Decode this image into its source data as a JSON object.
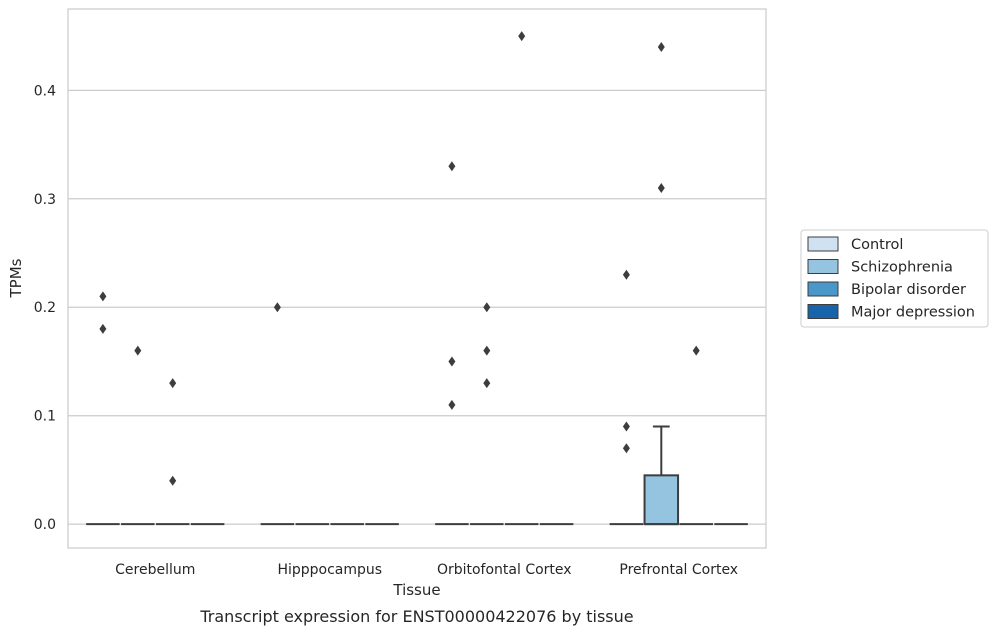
{
  "chart_data": {
    "type": "box",
    "title": "",
    "caption": "Transcript expression for ENST00000422076 by tissue",
    "xlabel": "Tissue",
    "ylabel": "TPMs",
    "ylim": [
      -0.022,
      0.475
    ],
    "yticks": [
      0.0,
      0.1,
      0.2,
      0.3,
      0.4
    ],
    "ytick_labels": [
      "0.0",
      "0.1",
      "0.2",
      "0.3",
      "0.4"
    ],
    "grid": "horizontal",
    "legend_position": "right",
    "categories": [
      "Cerebellum",
      "Hipppocampus",
      "Orbitofontal Cortex",
      "Prefrontal Cortex"
    ],
    "series": [
      {
        "name": "Control",
        "color": "#d0e1f2"
      },
      {
        "name": "Schizophrenia",
        "color": "#94c4df"
      },
      {
        "name": "Bipolar disorder",
        "color": "#4a98c9"
      },
      {
        "name": "Major depression",
        "color": "#1764ab"
      }
    ],
    "boxes": [
      {
        "category": 0,
        "series": 0,
        "q1": 0,
        "median": 0,
        "q3": 0,
        "whisker_low": 0,
        "whisker_high": 0,
        "outliers": [
          0.21,
          0.18
        ]
      },
      {
        "category": 0,
        "series": 1,
        "q1": 0,
        "median": 0,
        "q3": 0,
        "whisker_low": 0,
        "whisker_high": 0,
        "outliers": [
          0.16
        ]
      },
      {
        "category": 0,
        "series": 2,
        "q1": 0,
        "median": 0,
        "q3": 0,
        "whisker_low": 0,
        "whisker_high": 0,
        "outliers": [
          0.13,
          0.04
        ]
      },
      {
        "category": 0,
        "series": 3,
        "q1": 0,
        "median": 0,
        "q3": 0,
        "whisker_low": 0,
        "whisker_high": 0,
        "outliers": []
      },
      {
        "category": 1,
        "series": 0,
        "q1": 0,
        "median": 0,
        "q3": 0,
        "whisker_low": 0,
        "whisker_high": 0,
        "outliers": [
          0.2
        ]
      },
      {
        "category": 1,
        "series": 1,
        "q1": 0,
        "median": 0,
        "q3": 0,
        "whisker_low": 0,
        "whisker_high": 0,
        "outliers": []
      },
      {
        "category": 1,
        "series": 2,
        "q1": 0,
        "median": 0,
        "q3": 0,
        "whisker_low": 0,
        "whisker_high": 0,
        "outliers": []
      },
      {
        "category": 1,
        "series": 3,
        "q1": 0,
        "median": 0,
        "q3": 0,
        "whisker_low": 0,
        "whisker_high": 0,
        "outliers": []
      },
      {
        "category": 2,
        "series": 0,
        "q1": 0,
        "median": 0,
        "q3": 0,
        "whisker_low": 0,
        "whisker_high": 0,
        "outliers": [
          0.33,
          0.15,
          0.11
        ]
      },
      {
        "category": 2,
        "series": 1,
        "q1": 0,
        "median": 0,
        "q3": 0,
        "whisker_low": 0,
        "whisker_high": 0,
        "outliers": [
          0.2,
          0.16,
          0.13
        ]
      },
      {
        "category": 2,
        "series": 2,
        "q1": 0,
        "median": 0,
        "q3": 0,
        "whisker_low": 0,
        "whisker_high": 0,
        "outliers": [
          0.45
        ]
      },
      {
        "category": 2,
        "series": 3,
        "q1": 0,
        "median": 0,
        "q3": 0,
        "whisker_low": 0,
        "whisker_high": 0,
        "outliers": []
      },
      {
        "category": 3,
        "series": 0,
        "q1": 0,
        "median": 0,
        "q3": 0,
        "whisker_low": 0,
        "whisker_high": 0,
        "outliers": [
          0.23,
          0.09,
          0.07
        ]
      },
      {
        "category": 3,
        "series": 1,
        "q1": 0,
        "median": 0,
        "q3": 0.045,
        "whisker_low": 0,
        "whisker_high": 0.09,
        "outliers": [
          0.44,
          0.31
        ]
      },
      {
        "category": 3,
        "series": 2,
        "q1": 0,
        "median": 0,
        "q3": 0,
        "whisker_low": 0,
        "whisker_high": 0,
        "outliers": [
          0.16
        ]
      },
      {
        "category": 3,
        "series": 3,
        "q1": 0,
        "median": 0,
        "q3": 0,
        "whisker_low": 0,
        "whisker_high": 0,
        "outliers": []
      }
    ]
  }
}
